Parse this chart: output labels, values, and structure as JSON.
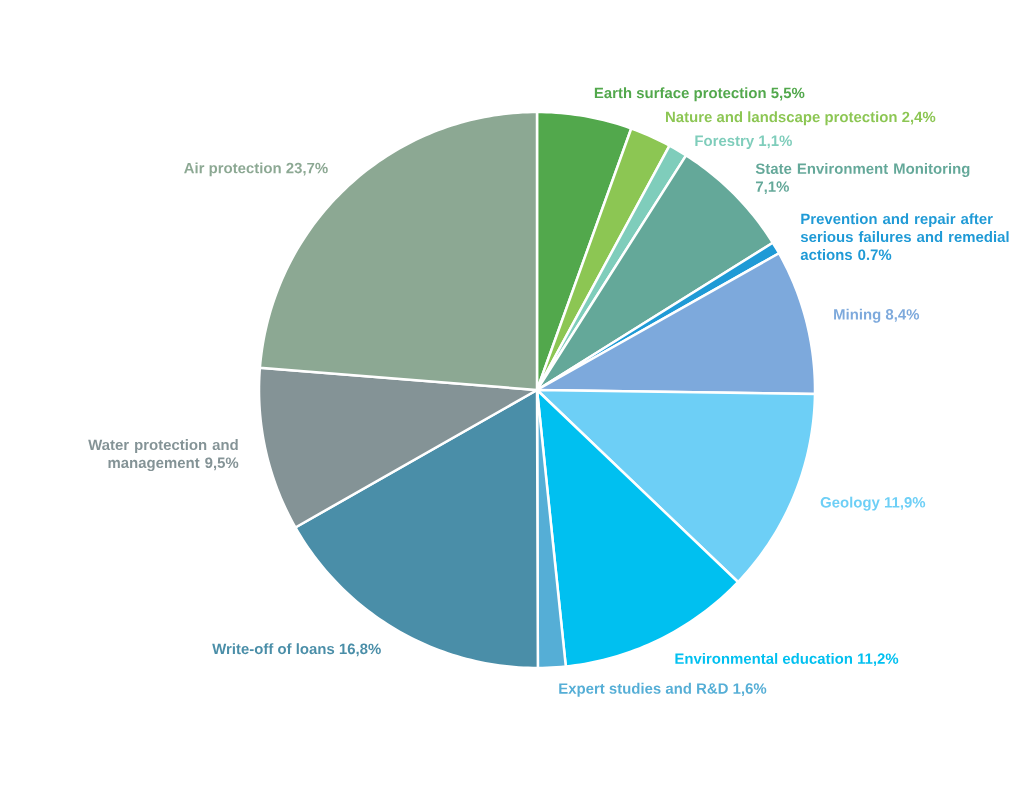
{
  "chart_data": {
    "type": "pie",
    "categories": [
      "Earth surface protection",
      "Nature and landscape protection",
      "Forestry",
      "State Environment Monitoring",
      "Prevention and repair after serious failures and remedial actions",
      "Mining",
      "Geology",
      "Environmental education",
      "Expert studies and R&D",
      "Write-off of loans",
      "Water protection and management",
      "Air protection"
    ],
    "values": [
      5.5,
      2.4,
      1.1,
      7.1,
      0.7,
      8.4,
      11.9,
      11.2,
      1.6,
      16.8,
      9.5,
      23.7
    ],
    "value_labels": [
      "5,5%",
      "2,4%",
      "1,1%",
      "7,1%",
      "0.7%",
      "8,4%",
      "11,9%",
      "11,2%",
      "1,6%",
      "16,8%",
      "9,5%",
      "23,7%"
    ],
    "colors": [
      "#52a84c",
      "#8cc653",
      "#7fcdbb",
      "#64a899",
      "#1f9ad6",
      "#7da9dc",
      "#6dcff6",
      "#00c0f0",
      "#55aed6",
      "#4a8ea8",
      "#849396",
      "#8ca893"
    ],
    "legend": false
  }
}
